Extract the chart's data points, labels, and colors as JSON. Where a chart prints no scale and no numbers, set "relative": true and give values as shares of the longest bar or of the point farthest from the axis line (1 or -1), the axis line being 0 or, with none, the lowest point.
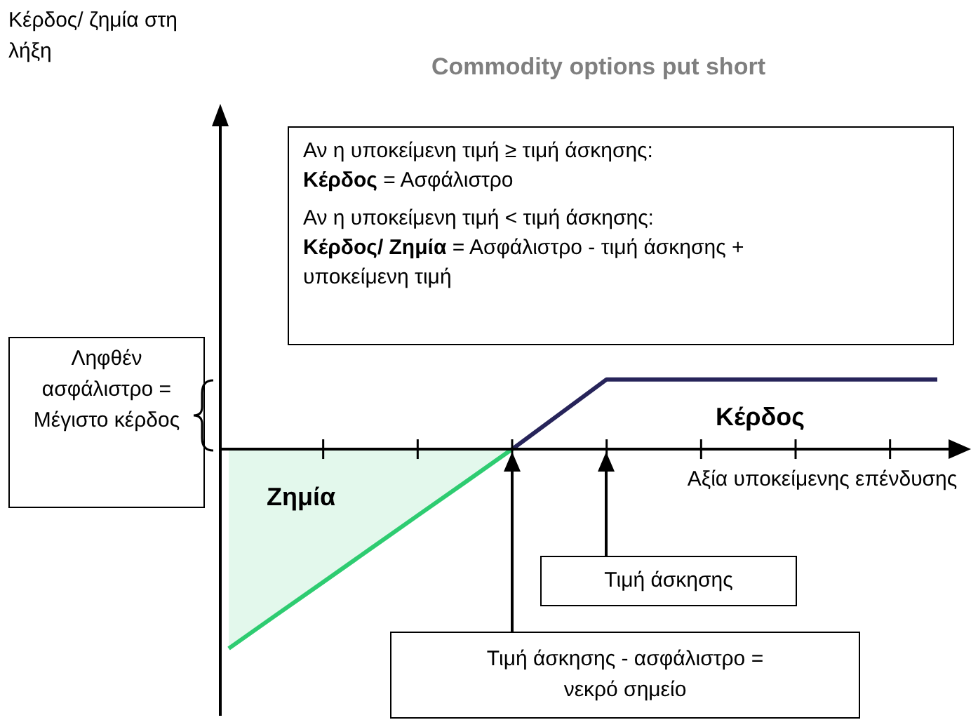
{
  "chart_data": {
    "type": "line",
    "title": "Commodity options put short",
    "xlabel": "Αξία υποκείμενης επένδυσης",
    "relative": true,
    "legend": false,
    "grid": false,
    "marker": "none",
    "categories": [
      null,
      null,
      null,
      null,
      null,
      null,
      null,
      null,
      null,
      null,
      null,
      null,
      null,
      null,
      null,
      null
    ],
    "series": [
      {
        "type": "area",
        "color": "#2ecc71",
        "values": [
          -1,
          -0.833,
          -0.667,
          -0.5,
          -0.333,
          -0.167,
          0,
          null,
          null,
          null,
          null,
          null,
          null,
          null,
          null,
          null
        ]
      },
      {
        "color": "#27245a",
        "values": [
          null,
          null,
          null,
          null,
          null,
          null,
          0,
          0.175,
          0.35,
          0.35,
          0.35,
          0.35,
          0.35,
          0.35,
          0.35,
          0.35
        ]
      }
    ],
    "annotations": [
      "Αν η υποκείμενη τιμή ≥ τιμή άσκησης:",
      "Κέρδος = Ασφάλιστρο",
      "Αν η υποκείμενη τιμή < τιμή άσκησης:",
      "Κέρδος/ Ζημία = Ασφάλιστρο - τιμή άσκησης + υποκείμενη τιμή",
      "Ληφθέν ασφάλιστρο = Μέγιστο κέρδος",
      "Κέρδος",
      "Ζημία",
      "Τιμή άσκησης",
      "Τιμή άσκησης - ασφάλιστρο = νεκρό σημείο",
      "Κέρδος/ ζημία στη λήξη"
    ]
  }
}
